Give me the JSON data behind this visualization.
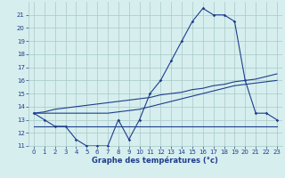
{
  "hours": [
    0,
    1,
    2,
    3,
    4,
    5,
    6,
    7,
    8,
    9,
    10,
    11,
    12,
    13,
    14,
    15,
    16,
    17,
    18,
    19,
    20,
    21,
    22,
    23
  ],
  "temp": [
    13.5,
    13.0,
    12.5,
    12.5,
    11.5,
    11.0,
    11.0,
    11.0,
    13.0,
    11.5,
    13.0,
    15.0,
    16.0,
    17.5,
    19.0,
    20.5,
    21.5,
    21.0,
    21.0,
    20.5,
    16.0,
    13.5,
    13.5,
    13.0
  ],
  "max_line": [
    13.5,
    13.6,
    13.8,
    13.9,
    14.0,
    14.1,
    14.2,
    14.3,
    14.4,
    14.5,
    14.6,
    14.7,
    14.9,
    15.0,
    15.1,
    15.3,
    15.4,
    15.6,
    15.7,
    15.9,
    16.0,
    16.1,
    16.3,
    16.5
  ],
  "min_line": [
    12.5,
    12.5,
    12.5,
    12.5,
    12.5,
    12.5,
    12.5,
    12.5,
    12.5,
    12.5,
    12.5,
    12.5,
    12.5,
    12.5,
    12.5,
    12.5,
    12.5,
    12.5,
    12.5,
    12.5,
    12.5,
    12.5,
    12.5,
    12.5
  ],
  "upper_line": [
    13.5,
    13.5,
    13.5,
    13.5,
    13.5,
    13.5,
    13.5,
    13.5,
    13.6,
    13.7,
    13.8,
    14.0,
    14.2,
    14.4,
    14.6,
    14.8,
    15.0,
    15.2,
    15.4,
    15.6,
    15.7,
    15.8,
    15.9,
    16.0
  ],
  "line_color": "#1e3e8c",
  "bg_color": "#d6eeee",
  "grid_color": "#a8c8c8",
  "xlabel": "Graphe des températures (°c)",
  "ylim": [
    11,
    22
  ],
  "yticks": [
    11,
    12,
    13,
    14,
    15,
    16,
    17,
    18,
    19,
    20,
    21
  ],
  "xlim": [
    -0.5,
    23.5
  ],
  "xticks": [
    0,
    1,
    2,
    3,
    4,
    5,
    6,
    7,
    8,
    9,
    10,
    11,
    12,
    13,
    14,
    15,
    16,
    17,
    18,
    19,
    20,
    21,
    22,
    23
  ]
}
